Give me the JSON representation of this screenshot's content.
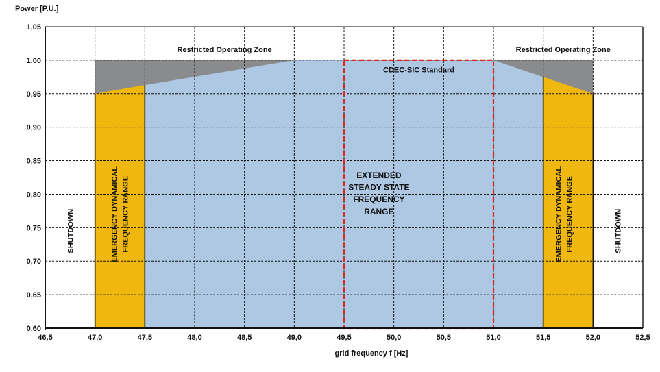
{
  "chart_data": {
    "type": "area",
    "title": "",
    "ylabel": "Power [P.U.]",
    "xlabel": "grid frequency f [Hz]",
    "xlim": [
      46.5,
      52.5
    ],
    "ylim": [
      0.6,
      1.05
    ],
    "grid": true,
    "x_ticks": [
      "46,5",
      "47,0",
      "47,5",
      "48,0",
      "48,5",
      "49,0",
      "49,5",
      "50,0",
      "50,5",
      "51,0",
      "51,5",
      "52,0",
      "52,5"
    ],
    "y_ticks": [
      "1,05",
      "1,00",
      "0,95",
      "0,90",
      "0,85",
      "0,80",
      "0,75",
      "0,70",
      "0,65",
      "0,60"
    ],
    "regions": [
      {
        "name": "emergency-left",
        "x": [
          47.0,
          47.5
        ],
        "top_line": [
          [
            47.0,
            0.95
          ],
          [
            47.5,
            0.963
          ]
        ]
      },
      {
        "name": "extended-steady-state",
        "x": [
          47.5,
          51.5
        ],
        "top_line": [
          [
            47.5,
            0.963
          ],
          [
            49.0,
            1.0
          ],
          [
            51.0,
            1.0
          ],
          [
            51.5,
            0.975
          ]
        ]
      },
      {
        "name": "emergency-right",
        "x": [
          51.5,
          52.0
        ],
        "top_line": [
          [
            51.5,
            0.975
          ],
          [
            52.0,
            0.95
          ]
        ]
      }
    ],
    "restricted_zones": [
      {
        "name": "restricted-left",
        "boundary": [
          [
            47.0,
            0.95
          ],
          [
            47.5,
            0.963
          ],
          [
            49.0,
            1.0
          ]
        ]
      },
      {
        "name": "restricted-right",
        "boundary": [
          [
            51.0,
            1.0
          ],
          [
            51.5,
            0.975
          ],
          [
            52.0,
            0.95
          ]
        ]
      }
    ],
    "standard_box": {
      "x": [
        49.5,
        51.0
      ],
      "y": [
        0.6,
        1.0
      ]
    },
    "boundary_lines": [
      47.0,
      47.5,
      51.5,
      52.0
    ],
    "colors": {
      "steady": "#aec8e4",
      "emergency": "#f0b80e",
      "restricted": "#8a8b8d",
      "standard_box": "#e2231a",
      "grid": "#111111"
    },
    "labels": {
      "restricted_left": "Restricted Operating Zone",
      "restricted_right": "Restricted Operating Zone",
      "standard": "CDEC-SIC Standard",
      "extended": [
        "EXTENDED",
        "STEADY STATE",
        "FREQUENCY",
        "RANGE"
      ],
      "emergency": [
        "EMERGENCY DYNAMICAL",
        "FREQUENCY RANGE"
      ],
      "shutdown": "SHUTDOWN"
    }
  }
}
